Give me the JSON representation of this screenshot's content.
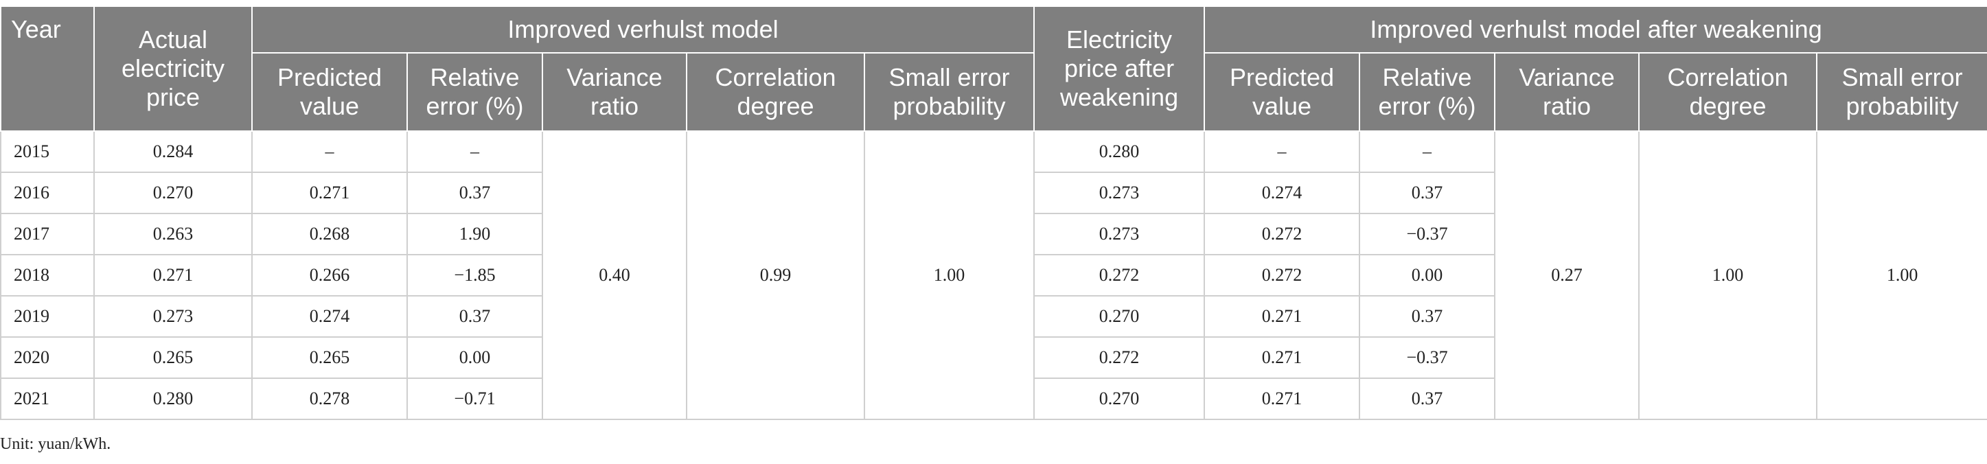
{
  "header": {
    "year": "Year",
    "actual_price": "Actual electricity price",
    "improved_model": "Improved verhulst model",
    "price_after_weakening": "Electricity price after weakening",
    "improved_model_weakened": "Improved verhulst model after weakening",
    "predicted_value": "Predicted value",
    "relative_error": "Relative error (%)",
    "variance_ratio": "Variance ratio",
    "correlation_degree": "Correlation degree",
    "small_error_probability": "Small error probability"
  },
  "rows": [
    {
      "year": "2015",
      "actual": "0.284",
      "pred": "–",
      "err": "–",
      "weakened": "0.280",
      "pred_w": "–",
      "err_w": "–"
    },
    {
      "year": "2016",
      "actual": "0.270",
      "pred": "0.271",
      "err": "0.37",
      "weakened": "0.273",
      "pred_w": "0.274",
      "err_w": "0.37"
    },
    {
      "year": "2017",
      "actual": "0.263",
      "pred": "0.268",
      "err": "1.90",
      "weakened": "0.273",
      "pred_w": "0.272",
      "err_w": "−0.37"
    },
    {
      "year": "2018",
      "actual": "0.271",
      "pred": "0.266",
      "err": "−1.85",
      "weakened": "0.272",
      "pred_w": "0.272",
      "err_w": "0.00"
    },
    {
      "year": "2019",
      "actual": "0.273",
      "pred": "0.274",
      "err": "0.37",
      "weakened": "0.270",
      "pred_w": "0.271",
      "err_w": "0.37"
    },
    {
      "year": "2020",
      "actual": "0.265",
      "pred": "0.265",
      "err": "0.00",
      "weakened": "0.272",
      "pred_w": "0.271",
      "err_w": "−0.37"
    },
    {
      "year": "2021",
      "actual": "0.280",
      "pred": "0.278",
      "err": "−0.71",
      "weakened": "0.270",
      "pred_w": "0.271",
      "err_w": "0.37"
    }
  ],
  "summary": {
    "variance_ratio": "0.40",
    "correlation_degree": "0.99",
    "small_error_probability": "1.00",
    "variance_ratio_w": "0.27",
    "correlation_degree_w": "1.00",
    "small_error_probability_w": "1.00"
  },
  "footnote": "Unit: yuan/kWh."
}
